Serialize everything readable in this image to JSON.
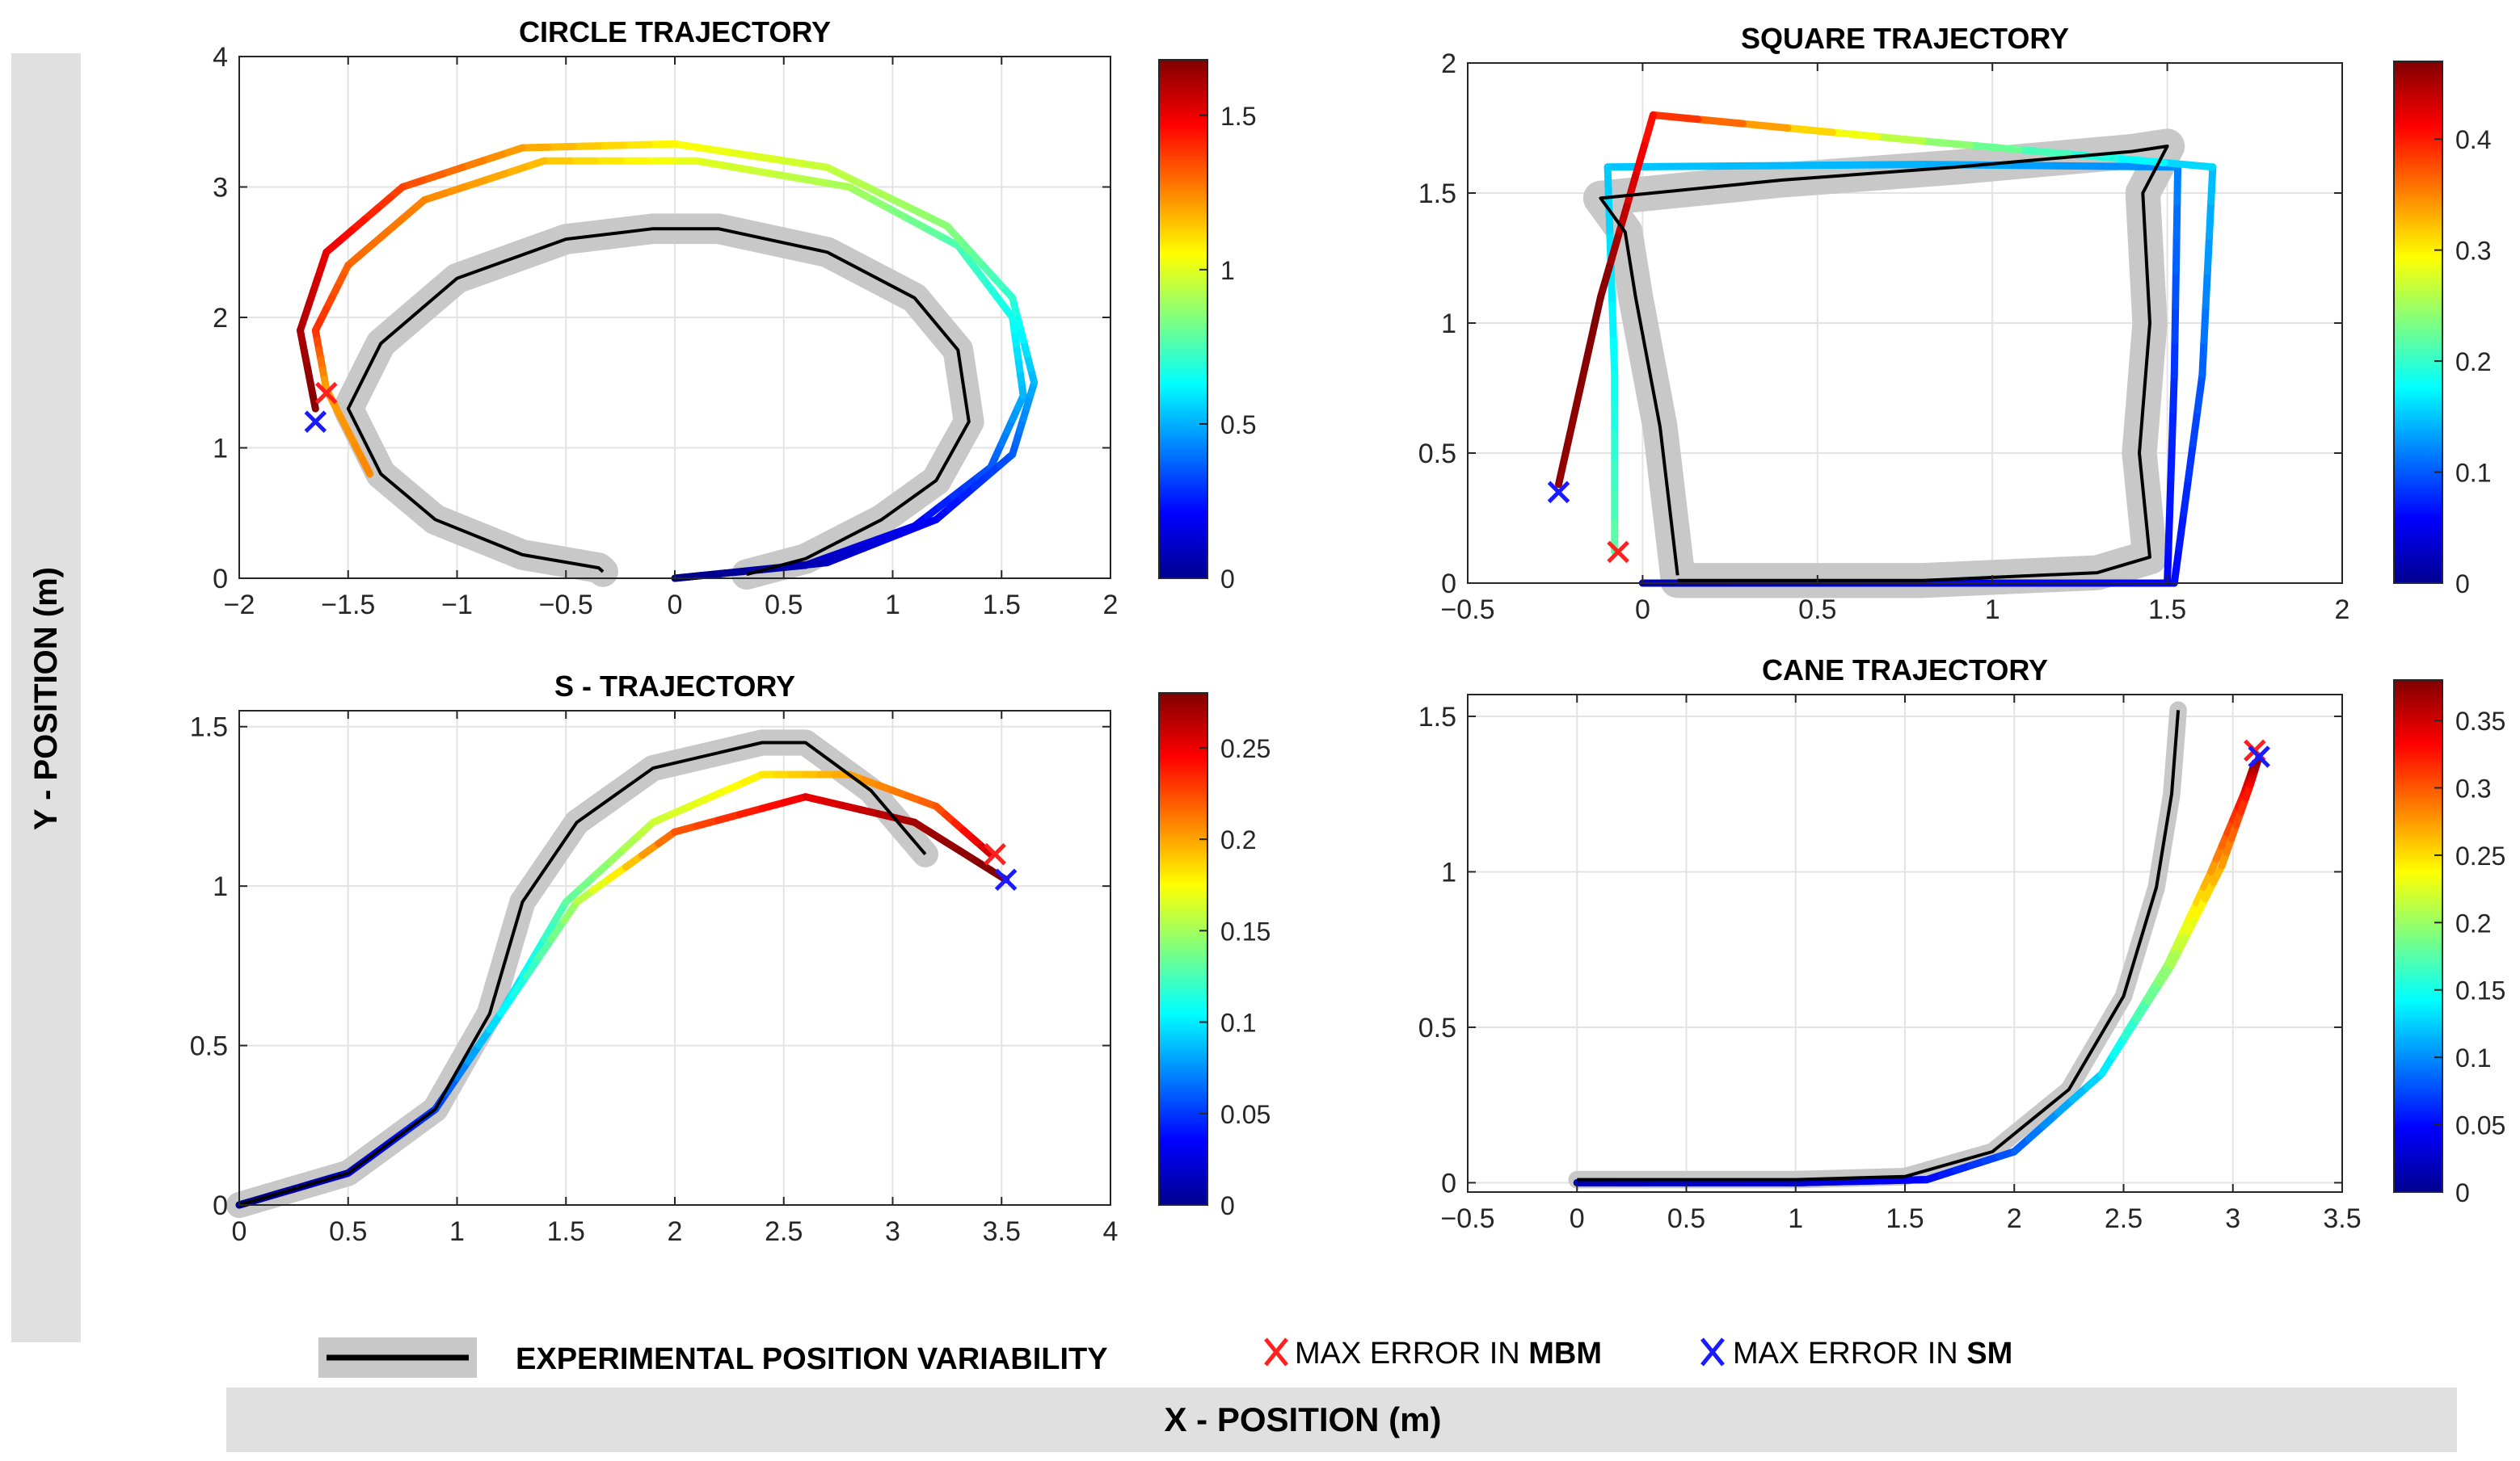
{
  "figure": {
    "ylabel": "Y - POSITION (m)",
    "xlabel": "X - POSITION (m)",
    "legend": {
      "experimental": "EXPERIMENTAL POSITION VARIABILITY",
      "mbm_prefix": "MAX ERROR IN ",
      "mbm_bold": "MBM",
      "sm_prefix": "MAX ERROR IN ",
      "sm_bold": "SM"
    },
    "colors": {
      "experimental_line": "#000000",
      "variability_band": "#c8c8c8",
      "max_error_mbm": "#ff2020",
      "max_error_sm": "#1a1aff",
      "label_box": "#e0e0e0"
    },
    "colormap": "jet"
  },
  "chart_data": [
    {
      "type": "line",
      "title": "CIRCLE TRAJECTORY",
      "xlabel": "",
      "ylabel": "",
      "xlim": [
        -2,
        2
      ],
      "ylim": [
        0,
        4
      ],
      "xticks": [
        -2,
        -1.5,
        -1,
        -0.5,
        0,
        0.5,
        1,
        1.5,
        2
      ],
      "xtick_labels": [
        "−2",
        "−1.5",
        "−1",
        "−0.5",
        "0",
        "0.5",
        "1",
        "1.5",
        "2"
      ],
      "yticks": [
        0,
        1,
        2,
        3,
        4
      ],
      "ytick_labels": [
        "0",
        "1",
        "2",
        "3",
        "4"
      ],
      "grid": true,
      "colorbar": {
        "range": [
          0,
          1.68
        ],
        "ticks": [
          0,
          0.5,
          1,
          1.5
        ],
        "tick_labels": [
          "0",
          "0.5",
          "1",
          "1.5"
        ]
      },
      "experimental": [
        [
          0.33,
          0.03
        ],
        [
          0.6,
          0.15
        ],
        [
          0.95,
          0.45
        ],
        [
          1.2,
          0.75
        ],
        [
          1.35,
          1.2
        ],
        [
          1.3,
          1.75
        ],
        [
          1.1,
          2.15
        ],
        [
          0.7,
          2.5
        ],
        [
          0.2,
          2.68
        ],
        [
          -0.1,
          2.68
        ],
        [
          -0.5,
          2.6
        ],
        [
          -1,
          2.3
        ],
        [
          -1.35,
          1.8
        ],
        [
          -1.5,
          1.3
        ],
        [
          -1.35,
          0.8
        ],
        [
          -1.1,
          0.45
        ],
        [
          -0.7,
          0.18
        ],
        [
          -0.35,
          0.08
        ],
        [
          -0.33,
          0.05
        ]
      ],
      "band_width": 0.07,
      "series": [
        {
          "points": [
            [
              0,
              0
            ],
            [
              0.6,
              0.1
            ],
            [
              1.1,
              0.4
            ],
            [
              1.45,
              0.85
            ],
            [
              1.6,
              1.4
            ],
            [
              1.55,
              2
            ],
            [
              1.3,
              2.55
            ],
            [
              0.8,
              3
            ],
            [
              0.1,
              3.2
            ],
            [
              -0.6,
              3.2
            ],
            [
              -1.15,
              2.9
            ],
            [
              -1.5,
              2.4
            ],
            [
              -1.65,
              1.9
            ],
            [
              -1.6,
              1.45
            ],
            [
              -1.4,
              0.8
            ]
          ],
          "values": [
            0,
            0.1,
            0.2,
            0.35,
            0.5,
            0.65,
            0.75,
            0.9,
            1.0,
            1.15,
            1.25,
            1.3,
            1.4,
            1.2,
            1.25
          ]
        },
        {
          "points": [
            [
              0,
              0
            ],
            [
              0.7,
              0.12
            ],
            [
              1.2,
              0.45
            ],
            [
              1.55,
              0.95
            ],
            [
              1.65,
              1.5
            ],
            [
              1.55,
              2.15
            ],
            [
              1.25,
              2.7
            ],
            [
              0.7,
              3.15
            ],
            [
              0,
              3.33
            ],
            [
              -0.7,
              3.3
            ],
            [
              -1.25,
              3
            ],
            [
              -1.6,
              2.5
            ],
            [
              -1.72,
              1.9
            ],
            [
              -1.65,
              1.3
            ]
          ],
          "values": [
            0,
            0.1,
            0.2,
            0.35,
            0.5,
            0.7,
            0.85,
            0.95,
            1.05,
            1.2,
            1.35,
            1.5,
            1.6,
            1.68
          ]
        }
      ],
      "max_error_mbm": [
        -1.6,
        1.42
      ],
      "max_error_sm": [
        -1.65,
        1.2
      ]
    },
    {
      "type": "line",
      "title": "SQUARE TRAJECTORY",
      "xlabel": "",
      "ylabel": "",
      "xlim": [
        -0.5,
        2
      ],
      "ylim": [
        0,
        2
      ],
      "xticks": [
        -0.5,
        0,
        0.5,
        1,
        1.5,
        2
      ],
      "xtick_labels": [
        "−0.5",
        "0",
        "0.5",
        "1",
        "1.5",
        "2"
      ],
      "yticks": [
        0,
        0.5,
        1,
        1.5,
        2
      ],
      "ytick_labels": [
        "0",
        "0.5",
        "1",
        "1.5",
        "2"
      ],
      "grid": true,
      "colorbar": {
        "range": [
          0,
          0.47
        ],
        "ticks": [
          0,
          0.1,
          0.2,
          0.3,
          0.4
        ],
        "tick_labels": [
          "0",
          "0.1",
          "0.2",
          "0.3",
          "0.4"
        ]
      },
      "experimental": [
        [
          0.1,
          0.03
        ],
        [
          0.05,
          0.6
        ],
        [
          -0.02,
          1.1
        ],
        [
          -0.05,
          1.35
        ],
        [
          -0.12,
          1.48
        ],
        [
          0.4,
          1.55
        ],
        [
          0.9,
          1.6
        ],
        [
          1.4,
          1.66
        ],
        [
          1.5,
          1.68
        ],
        [
          1.43,
          1.5
        ],
        [
          1.45,
          1
        ],
        [
          1.42,
          0.5
        ],
        [
          1.45,
          0.1
        ],
        [
          1.3,
          0.04
        ],
        [
          0.8,
          0.01
        ],
        [
          0.1,
          0.01
        ]
      ],
      "band_width": 0.05,
      "series": [
        {
          "points": [
            [
              0,
              0
            ],
            [
              0.75,
              0
            ],
            [
              1.5,
              0
            ],
            [
              1.52,
              0.8
            ],
            [
              1.53,
              1.6
            ],
            [
              0.8,
              1.61
            ],
            [
              -0.1,
              1.6
            ],
            [
              -0.08,
              0.8
            ],
            [
              -0.08,
              0.12
            ]
          ],
          "values": [
            0.03,
            0.05,
            0.06,
            0.08,
            0.12,
            0.14,
            0.15,
            0.18,
            0.22
          ]
        },
        {
          "points": [
            [
              0,
              0
            ],
            [
              0.75,
              0
            ],
            [
              1.52,
              0
            ],
            [
              1.6,
              0.8
            ],
            [
              1.63,
              1.6
            ],
            [
              0.8,
              1.7
            ],
            [
              0.03,
              1.8
            ],
            [
              -0.12,
              1.1
            ],
            [
              -0.24,
              0.38
            ]
          ],
          "values": [
            0.02,
            0.04,
            0.06,
            0.1,
            0.15,
            0.25,
            0.4,
            0.47,
            0.46
          ]
        }
      ],
      "max_error_mbm": [
        -0.07,
        0.12
      ],
      "max_error_sm": [
        -0.24,
        0.35
      ]
    },
    {
      "type": "line",
      "title": "S - TRAJECTORY",
      "xlabel": "",
      "ylabel": "",
      "xlim": [
        0,
        4
      ],
      "ylim": [
        0,
        1.55
      ],
      "xticks": [
        0,
        0.5,
        1,
        1.5,
        2,
        2.5,
        3,
        3.5,
        4
      ],
      "xtick_labels": [
        "0",
        "0.5",
        "1",
        "1.5",
        "2",
        "2.5",
        "3",
        "3.5",
        "4"
      ],
      "yticks": [
        0,
        0.5,
        1,
        1.5
      ],
      "ytick_labels": [
        "0",
        "0.5",
        "1",
        "1.5"
      ],
      "grid": true,
      "colorbar": {
        "range": [
          0,
          0.28
        ],
        "ticks": [
          0,
          0.05,
          0.1,
          0.15,
          0.2,
          0.25
        ],
        "tick_labels": [
          "0",
          "0.05",
          "0.1",
          "0.15",
          "0.2",
          "0.25"
        ]
      },
      "experimental": [
        [
          0,
          0
        ],
        [
          0.5,
          0.1
        ],
        [
          0.9,
          0.3
        ],
        [
          1.15,
          0.6
        ],
        [
          1.3,
          0.95
        ],
        [
          1.55,
          1.2
        ],
        [
          1.9,
          1.37
        ],
        [
          2.4,
          1.45
        ],
        [
          2.6,
          1.45
        ],
        [
          2.9,
          1.3
        ],
        [
          3.15,
          1.1
        ]
      ],
      "band_width": 0.06,
      "series": [
        {
          "points": [
            [
              0,
              0
            ],
            [
              0.5,
              0.1
            ],
            [
              0.9,
              0.3
            ],
            [
              1.2,
              0.6
            ],
            [
              1.5,
              0.95
            ],
            [
              1.9,
              1.2
            ],
            [
              2.4,
              1.35
            ],
            [
              2.8,
              1.35
            ],
            [
              3.2,
              1.25
            ],
            [
              3.45,
              1.1
            ]
          ],
          "values": [
            0,
            0.02,
            0.05,
            0.09,
            0.13,
            0.16,
            0.18,
            0.2,
            0.22,
            0.26
          ]
        },
        {
          "points": [
            [
              0,
              0
            ],
            [
              0.5,
              0.1
            ],
            [
              0.9,
              0.3
            ],
            [
              1.2,
              0.6
            ],
            [
              1.55,
              0.95
            ],
            [
              2,
              1.17
            ],
            [
              2.6,
              1.28
            ],
            [
              3.1,
              1.2
            ],
            [
              3.52,
              1.02
            ]
          ],
          "values": [
            0,
            0.02,
            0.05,
            0.1,
            0.15,
            0.22,
            0.25,
            0.27,
            0.28
          ]
        }
      ],
      "max_error_mbm": [
        3.47,
        1.1
      ],
      "max_error_sm": [
        3.52,
        1.02
      ]
    },
    {
      "type": "line",
      "title": "CANE TRAJECTORY",
      "xlabel": "",
      "ylabel": "",
      "xlim": [
        -0.5,
        3.5
      ],
      "ylim": [
        -0.03,
        1.57
      ],
      "xticks": [
        -0.5,
        0,
        0.5,
        1,
        1.5,
        2,
        2.5,
        3,
        3.5
      ],
      "xtick_labels": [
        "−0.5",
        "0",
        "0.5",
        "1",
        "1.5",
        "2",
        "2.5",
        "3",
        "3.5"
      ],
      "yticks": [
        0,
        0.5,
        1,
        1.5
      ],
      "ytick_labels": [
        "0",
        "0.5",
        "1",
        "1.5"
      ],
      "grid": true,
      "colorbar": {
        "range": [
          0,
          0.38
        ],
        "ticks": [
          0,
          0.05,
          0.1,
          0.15,
          0.2,
          0.25,
          0.3,
          0.35
        ],
        "tick_labels": [
          "0",
          "0.05",
          "0.1",
          "0.15",
          "0.2",
          "0.25",
          "0.3",
          "0.35"
        ]
      },
      "experimental": [
        [
          0,
          0.01
        ],
        [
          1,
          0.01
        ],
        [
          1.5,
          0.02
        ],
        [
          1.9,
          0.1
        ],
        [
          2.25,
          0.3
        ],
        [
          2.5,
          0.6
        ],
        [
          2.65,
          0.95
        ],
        [
          2.72,
          1.25
        ],
        [
          2.75,
          1.52
        ]
      ],
      "band_width": 0.04,
      "series": [
        {
          "points": [
            [
              0,
              0
            ],
            [
              1,
              0
            ],
            [
              1.6,
              0.01
            ],
            [
              2,
              0.1
            ],
            [
              2.4,
              0.35
            ],
            [
              2.7,
              0.7
            ],
            [
              2.9,
              1.0
            ],
            [
              3.05,
              1.25
            ],
            [
              3.1,
              1.35
            ]
          ],
          "values": [
            0.02,
            0.03,
            0.05,
            0.08,
            0.13,
            0.2,
            0.27,
            0.33,
            0.37
          ]
        },
        {
          "points": [
            [
              0,
              0
            ],
            [
              1,
              0
            ],
            [
              1.6,
              0.01
            ],
            [
              2,
              0.1
            ],
            [
              2.4,
              0.35
            ],
            [
              2.72,
              0.7
            ],
            [
              2.95,
              1.02
            ],
            [
              3.08,
              1.28
            ],
            [
              3.12,
              1.37
            ]
          ],
          "values": [
            0.02,
            0.03,
            0.05,
            0.08,
            0.13,
            0.2,
            0.27,
            0.33,
            0.38
          ]
        }
      ],
      "max_error_mbm": [
        3.1,
        1.39
      ],
      "max_error_sm": [
        3.12,
        1.37
      ]
    }
  ]
}
